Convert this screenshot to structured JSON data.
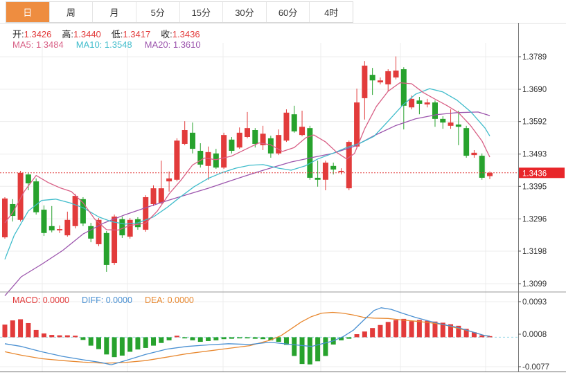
{
  "tabs": {
    "items": [
      "日",
      "周",
      "月",
      "5分",
      "15分",
      "30分",
      "60分",
      "4时"
    ],
    "active": "日"
  },
  "quote": {
    "open_label": "开:",
    "open": "1.3426",
    "high_label": "高:",
    "high": "1.3440",
    "low_label": "低:",
    "low": "1.3417",
    "close_label": "收:",
    "close": "1.3436"
  },
  "ma_row": {
    "ma5": "MA5: 1.3484",
    "ma10": "MA10: 1.3548",
    "ma20": "MA20: 1.3610"
  },
  "macd_row": {
    "macd": "MACD: 0.0000",
    "diff": "DIFF: 0.0000",
    "dea": "DEA: 0.0000"
  },
  "colors": {
    "up": "#e23b3b",
    "down": "#27a22d",
    "ma5": "#d85f85",
    "ma10": "#3fbccb",
    "ma20": "#9c55ad",
    "diff": "#4a90d2",
    "dea": "#e8882f",
    "badge": "#e8262a",
    "tab_accent": "#ee8d40",
    "grid": "#ececec",
    "axis_line": "#777777",
    "text": "#333333",
    "zero_dash": "#93d8e6",
    "price_dash": "#e23b3b"
  },
  "chart_data": {
    "type": "candlestick+macd",
    "main": {
      "y_axis_labels": [
        1.3789,
        1.369,
        1.3592,
        1.3493,
        1.3395,
        1.3296,
        1.3198,
        1.3099
      ],
      "last_price": 1.3436,
      "candles": [
        [
          1.324,
          1.3362,
          1.3236,
          1.3358
        ],
        [
          1.3341,
          1.3356,
          1.3288,
          1.3305
        ],
        [
          1.3293,
          1.3442,
          1.3288,
          1.3436
        ],
        [
          1.3431,
          1.3436,
          1.3383,
          1.3404
        ],
        [
          1.341,
          1.3419,
          1.3309,
          1.3316
        ],
        [
          1.3324,
          1.3337,
          1.3244,
          1.3253
        ],
        [
          1.3274,
          1.3335,
          1.3255,
          1.3261
        ],
        [
          1.3261,
          1.3276,
          1.3253,
          1.3265
        ],
        [
          1.3246,
          1.3318,
          1.3242,
          1.3293
        ],
        [
          1.3274,
          1.3372,
          1.3267,
          1.3366
        ],
        [
          1.3356,
          1.3362,
          1.3274,
          1.3282
        ],
        [
          1.3274,
          1.3284,
          1.3225,
          1.3236
        ],
        [
          1.3219,
          1.3299,
          1.3213,
          1.3293
        ],
        [
          1.3253,
          1.3259,
          1.3135,
          1.3156
        ],
        [
          1.3162,
          1.3309,
          1.3156,
          1.3303
        ],
        [
          1.3295,
          1.3303,
          1.3238,
          1.3246
        ],
        [
          1.3242,
          1.3299,
          1.3236,
          1.3293
        ],
        [
          1.3295,
          1.3301,
          1.3263,
          1.3271
        ],
        [
          1.3263,
          1.3368,
          1.3257,
          1.3362
        ],
        [
          1.3341,
          1.3398,
          1.3335,
          1.3389
        ],
        [
          1.3345,
          1.3473,
          1.3341,
          1.3389
        ],
        [
          1.341,
          1.344,
          1.3379,
          1.3419
        ],
        [
          1.3415,
          1.3541,
          1.341,
          1.3534
        ],
        [
          1.3524,
          1.3593,
          1.352,
          1.3566
        ],
        [
          1.3558,
          1.3589,
          1.3495,
          1.3509
        ],
        [
          1.3503,
          1.3526,
          1.3452,
          1.3461
        ],
        [
          1.3457,
          1.3516,
          1.3415,
          1.3499
        ],
        [
          1.3495,
          1.3509,
          1.3448,
          1.3452
        ],
        [
          1.3452,
          1.3558,
          1.3448,
          1.3551
        ],
        [
          1.3537,
          1.3545,
          1.3495,
          1.3503
        ],
        [
          1.3513,
          1.3574,
          1.3509,
          1.3558
        ],
        [
          1.3545,
          1.3621,
          1.3541,
          1.3572
        ],
        [
          1.3566,
          1.3572,
          1.3513,
          1.3524
        ],
        [
          1.352,
          1.3579,
          1.3505,
          1.3555
        ],
        [
          1.3541,
          1.3549,
          1.3482,
          1.3495
        ],
        [
          1.3495,
          1.3568,
          1.349,
          1.3551
        ],
        [
          1.3534,
          1.3629,
          1.353,
          1.3619
        ],
        [
          1.3614,
          1.364,
          1.3558,
          1.3562
        ],
        [
          1.3551,
          1.3625,
          1.3547,
          1.3576
        ],
        [
          1.3572,
          1.3579,
          1.3415,
          1.3421
        ],
        [
          1.3421,
          1.3473,
          1.3394,
          1.3415
        ],
        [
          1.3415,
          1.3473,
          1.3383,
          1.3467
        ],
        [
          1.3457,
          1.3467,
          1.3431,
          1.3446
        ],
        [
          1.3438,
          1.345,
          1.3431,
          1.3442
        ],
        [
          1.3389,
          1.3534,
          1.3383,
          1.353
        ],
        [
          1.3516,
          1.3692,
          1.3511,
          1.365
        ],
        [
          1.3663,
          1.3776,
          1.3598,
          1.3762
        ],
        [
          1.3734,
          1.3755,
          1.3673,
          1.3717
        ],
        [
          1.3711,
          1.3726,
          1.3705,
          1.3717
        ],
        [
          1.3705,
          1.3751,
          1.3684,
          1.3745
        ],
        [
          1.3726,
          1.379,
          1.372,
          1.3747
        ],
        [
          1.3751,
          1.3757,
          1.3568,
          1.364
        ],
        [
          1.3635,
          1.3671,
          1.3629,
          1.3661
        ],
        [
          1.3656,
          1.3667,
          1.3614,
          1.3646
        ],
        [
          1.3644,
          1.3661,
          1.3635,
          1.365
        ],
        [
          1.365,
          1.3656,
          1.3576,
          1.36
        ],
        [
          1.36,
          1.3608,
          1.357,
          1.3589
        ],
        [
          1.3579,
          1.3629,
          1.357,
          1.3589
        ],
        [
          1.3583,
          1.3625,
          1.352,
          1.3576
        ],
        [
          1.3572,
          1.3579,
          1.3482,
          1.3488
        ],
        [
          1.349,
          1.3505,
          1.3482,
          1.3497
        ],
        [
          1.3488,
          1.3495,
          1.3415,
          1.3421
        ],
        [
          1.3426,
          1.344,
          1.3417,
          1.3436
        ]
      ],
      "ma5": [
        [
          0,
          1.3284
        ],
        [
          1,
          1.3315
        ],
        [
          2.5,
          1.338
        ],
        [
          4,
          1.3428
        ],
        [
          5.5,
          1.3407
        ],
        [
          7,
          1.3391
        ],
        [
          8.5,
          1.3379
        ],
        [
          10,
          1.3345
        ],
        [
          11.5,
          1.3295
        ],
        [
          13,
          1.3263
        ],
        [
          14.5,
          1.3262
        ],
        [
          16,
          1.3276
        ],
        [
          18,
          1.3283
        ],
        [
          19.5,
          1.332
        ],
        [
          21,
          1.3372
        ],
        [
          22.5,
          1.3413
        ],
        [
          24,
          1.346
        ],
        [
          25.5,
          1.3481
        ],
        [
          27,
          1.3476
        ],
        [
          29,
          1.3487
        ],
        [
          31,
          1.351
        ],
        [
          32.5,
          1.3527
        ],
        [
          34,
          1.3521
        ],
        [
          35.5,
          1.3501
        ],
        [
          37,
          1.3513
        ],
        [
          38.5,
          1.3543
        ],
        [
          39.5,
          1.3551
        ],
        [
          41,
          1.353
        ],
        [
          42.5,
          1.3497
        ],
        [
          43.7,
          1.3478
        ],
        [
          44.7,
          1.3495
        ],
        [
          46,
          1.357
        ],
        [
          47.5,
          1.3638
        ],
        [
          49,
          1.3684
        ],
        [
          50.5,
          1.371
        ],
        [
          52,
          1.3707
        ],
        [
          53.5,
          1.368
        ],
        [
          55,
          1.366
        ],
        [
          56.5,
          1.3641
        ],
        [
          58,
          1.3619
        ],
        [
          59.5,
          1.3581
        ],
        [
          61,
          1.3533
        ],
        [
          62,
          1.3484
        ]
      ],
      "ma10": [
        [
          0,
          1.3173
        ],
        [
          1.2,
          1.3246
        ],
        [
          3,
          1.332
        ],
        [
          4.7,
          1.3352
        ],
        [
          6.5,
          1.3356
        ],
        [
          8.3,
          1.3345
        ],
        [
          10,
          1.333
        ],
        [
          12,
          1.3302
        ],
        [
          13.6,
          1.3288
        ],
        [
          15.4,
          1.328
        ],
        [
          17,
          1.3284
        ],
        [
          19,
          1.3302
        ],
        [
          20.7,
          1.333
        ],
        [
          22.4,
          1.3362
        ],
        [
          24.2,
          1.3394
        ],
        [
          26,
          1.3419
        ],
        [
          27.7,
          1.3436
        ],
        [
          29.5,
          1.345
        ],
        [
          31.3,
          1.3459
        ],
        [
          33,
          1.3461
        ],
        [
          35,
          1.345
        ],
        [
          36.6,
          1.3444
        ],
        [
          38.4,
          1.3457
        ],
        [
          40,
          1.3478
        ],
        [
          42,
          1.3496
        ],
        [
          43.7,
          1.3513
        ],
        [
          45.4,
          1.3526
        ],
        [
          47.2,
          1.3547
        ],
        [
          49,
          1.3593
        ],
        [
          50.8,
          1.364
        ],
        [
          52.5,
          1.3675
        ],
        [
          54.3,
          1.3692
        ],
        [
          56,
          1.3682
        ],
        [
          57.8,
          1.3657
        ],
        [
          59.6,
          1.3621
        ],
        [
          61.4,
          1.3572
        ],
        [
          62,
          1.3548
        ]
      ],
      "ma20": [
        [
          0,
          1.3062
        ],
        [
          2.1,
          1.312
        ],
        [
          4.7,
          1.3158
        ],
        [
          7.4,
          1.32
        ],
        [
          10,
          1.325
        ],
        [
          12.7,
          1.3284
        ],
        [
          15.4,
          1.3309
        ],
        [
          18,
          1.333
        ],
        [
          20.7,
          1.3351
        ],
        [
          23.3,
          1.337
        ],
        [
          26,
          1.3389
        ],
        [
          28.6,
          1.341
        ],
        [
          31.3,
          1.3431
        ],
        [
          33.9,
          1.345
        ],
        [
          36.6,
          1.3469
        ],
        [
          39.2,
          1.3482
        ],
        [
          41.9,
          1.3495
        ],
        [
          44.6,
          1.3516
        ],
        [
          47.2,
          1.3549
        ],
        [
          49.9,
          1.3579
        ],
        [
          52.5,
          1.36
        ],
        [
          55.2,
          1.3613
        ],
        [
          57.8,
          1.3619
        ],
        [
          60.5,
          1.3621
        ],
        [
          62,
          1.361
        ]
      ]
    },
    "macd": {
      "y_axis_labels": [
        0.0093,
        0.0008,
        -0.0077
      ],
      "histogram": [
        0.0033,
        0.0044,
        0.0047,
        0.0037,
        0.0019,
        0.001,
        0.0006,
        0.0005,
        0.0005,
        0.0004,
        -0.0007,
        -0.0022,
        -0.0031,
        -0.0045,
        -0.0052,
        -0.0048,
        -0.0038,
        -0.0032,
        -0.0028,
        -0.0022,
        -0.0015,
        -0.0008,
        0.0004,
        -0.0003,
        -0.0008,
        -0.0012,
        -0.001,
        -0.0008,
        -0.0005,
        -0.0004,
        -0.0003,
        -0.0003,
        -0.0004,
        -0.0005,
        -0.0008,
        -0.0012,
        -0.002,
        -0.0049,
        -0.007,
        -0.0071,
        -0.0063,
        -0.0049,
        -0.0019,
        -0.0008,
        -0.0004,
        0.0008,
        0.0015,
        0.0024,
        0.0032,
        0.004,
        0.0045,
        0.0048,
        0.0042,
        0.0045,
        0.0043,
        0.0041,
        0.0038,
        0.0034,
        0.003,
        0.0022,
        0.0013,
        0.0005,
        0.0002
      ],
      "diff": [
        [
          0,
          -0.0017
        ],
        [
          2.1,
          -0.0024
        ],
        [
          4.7,
          -0.0038
        ],
        [
          7.4,
          -0.005
        ],
        [
          10,
          -0.0059
        ],
        [
          12.3,
          -0.0066
        ],
        [
          13.6,
          -0.0072
        ],
        [
          15.4,
          -0.0061
        ],
        [
          18,
          -0.0045
        ],
        [
          20.7,
          -0.0031
        ],
        [
          23.3,
          -0.0024
        ],
        [
          26,
          -0.002
        ],
        [
          28.6,
          -0.0017
        ],
        [
          31.3,
          -0.0019
        ],
        [
          33.9,
          -0.0013
        ],
        [
          36.6,
          -0.0019
        ],
        [
          39.2,
          -0.0024
        ],
        [
          41.9,
          -0.001
        ],
        [
          43.2,
          0.0001
        ],
        [
          44.6,
          0.0019
        ],
        [
          45.9,
          0.0045
        ],
        [
          47.2,
          0.007
        ],
        [
          48.1,
          0.0077
        ],
        [
          49.4,
          0.0073
        ],
        [
          50.8,
          0.0063
        ],
        [
          52.5,
          0.0052
        ],
        [
          54.3,
          0.0042
        ],
        [
          56.1,
          0.0033
        ],
        [
          57.8,
          0.0026
        ],
        [
          59.6,
          0.0015
        ],
        [
          61.4,
          0.0004
        ],
        [
          62,
          0.0003
        ]
      ],
      "dea": [
        [
          0,
          -0.0038
        ],
        [
          2.1,
          -0.0047
        ],
        [
          4.7,
          -0.0056
        ],
        [
          7.4,
          -0.0061
        ],
        [
          10,
          -0.0065
        ],
        [
          12.7,
          -0.0068
        ],
        [
          15.4,
          -0.0066
        ],
        [
          18,
          -0.0061
        ],
        [
          20.7,
          -0.0052
        ],
        [
          23.3,
          -0.0043
        ],
        [
          26,
          -0.0036
        ],
        [
          28.6,
          -0.0029
        ],
        [
          31.3,
          -0.0022
        ],
        [
          33.9,
          -0.0008
        ],
        [
          35.3,
          0.0004
        ],
        [
          36.6,
          0.0022
        ],
        [
          37.9,
          0.004
        ],
        [
          39.2,
          0.0054
        ],
        [
          40.5,
          0.0063
        ],
        [
          41.9,
          0.0065
        ],
        [
          43.2,
          0.0063
        ],
        [
          44.6,
          0.0058
        ],
        [
          45.9,
          0.0052
        ],
        [
          47.2,
          0.005
        ],
        [
          49,
          0.0049
        ],
        [
          50.8,
          0.0045
        ],
        [
          52.5,
          0.0042
        ],
        [
          54.3,
          0.0038
        ],
        [
          56.1,
          0.0033
        ],
        [
          57.8,
          0.0024
        ],
        [
          59.6,
          0.0015
        ],
        [
          61.4,
          0.0004
        ],
        [
          62,
          0.0003
        ]
      ]
    }
  }
}
